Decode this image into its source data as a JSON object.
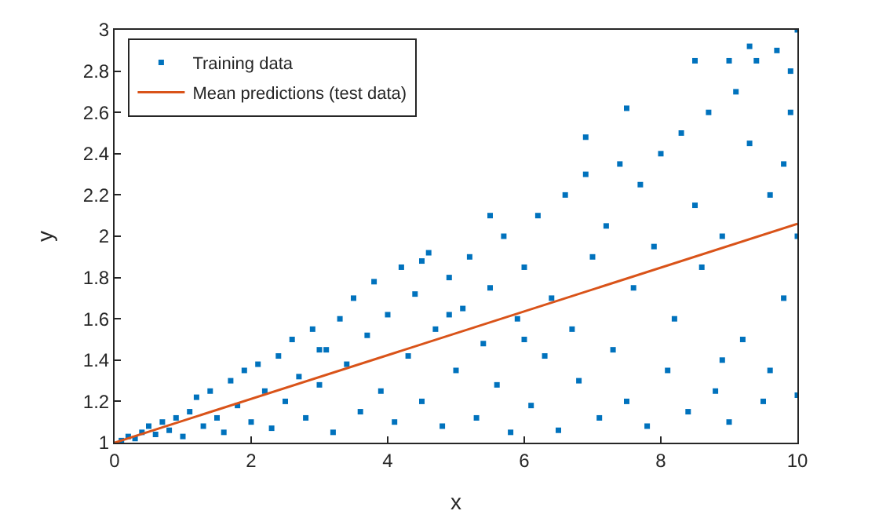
{
  "chart_data": {
    "type": "scatter",
    "xlabel": "x",
    "ylabel": "y",
    "xlim": [
      0,
      10
    ],
    "xticks": [
      0,
      2,
      4,
      6,
      8,
      10
    ],
    "ylim": [
      1,
      3
    ],
    "yticks": [
      1,
      1.2,
      1.4,
      1.6,
      1.8,
      2,
      2.2,
      2.4,
      2.6,
      2.8,
      3
    ],
    "grid": false,
    "legend": "top left",
    "series": [
      {
        "name": "Training data",
        "color": "#0072bd",
        "marker": "square",
        "x": [
          0.1,
          0.2,
          0.3,
          0.4,
          0.5,
          0.6,
          0.7,
          0.8,
          0.9,
          1.0,
          1.1,
          1.2,
          1.3,
          1.4,
          1.5,
          1.6,
          1.7,
          1.8,
          1.9,
          2.0,
          2.1,
          2.2,
          2.3,
          2.4,
          2.5,
          2.6,
          2.7,
          2.8,
          2.9,
          3.0,
          3.1,
          3.2,
          3.3,
          3.4,
          3.5,
          3.6,
          3.7,
          3.8,
          3.9,
          4.0,
          4.1,
          4.2,
          4.3,
          4.4,
          4.5,
          4.6,
          4.7,
          4.8,
          4.9,
          5.0,
          5.1,
          5.2,
          5.3,
          5.4,
          5.5,
          5.6,
          5.7,
          5.8,
          5.9,
          6.0,
          6.1,
          6.2,
          6.3,
          6.4,
          6.5,
          6.6,
          6.7,
          6.8,
          6.9,
          7.0,
          7.1,
          7.2,
          7.3,
          7.4,
          7.5,
          7.6,
          7.7,
          7.8,
          7.9,
          8.0,
          8.1,
          8.2,
          8.3,
          8.4,
          8.5,
          8.6,
          8.7,
          8.8,
          8.9,
          9.0,
          9.1,
          9.2,
          9.3,
          9.4,
          9.5,
          9.6,
          9.7,
          9.8,
          9.9,
          10.0,
          10.0,
          9.9,
          9.6,
          9.0,
          9.3,
          8.5,
          9.8,
          10.0,
          8.9,
          7.5,
          6.9,
          6.0,
          5.5,
          4.5,
          4.9,
          3.0
        ],
        "values": [
          1.01,
          1.03,
          1.02,
          1.05,
          1.08,
          1.04,
          1.1,
          1.06,
          1.12,
          1.03,
          1.15,
          1.22,
          1.08,
          1.25,
          1.12,
          1.05,
          1.3,
          1.18,
          1.35,
          1.1,
          1.38,
          1.25,
          1.07,
          1.42,
          1.2,
          1.5,
          1.32,
          1.12,
          1.55,
          1.28,
          1.45,
          1.05,
          1.6,
          1.38,
          1.7,
          1.15,
          1.52,
          1.78,
          1.25,
          1.62,
          1.1,
          1.85,
          1.42,
          1.72,
          1.2,
          1.92,
          1.55,
          1.08,
          1.8,
          1.35,
          1.65,
          1.9,
          1.12,
          1.48,
          1.75,
          1.28,
          2.0,
          1.05,
          1.6,
          1.85,
          1.18,
          2.1,
          1.42,
          1.7,
          1.06,
          2.2,
          1.55,
          1.3,
          2.3,
          1.9,
          1.12,
          2.05,
          1.45,
          2.35,
          1.2,
          1.75,
          2.25,
          1.08,
          1.95,
          2.4,
          1.35,
          1.6,
          2.5,
          1.15,
          2.15,
          1.85,
          2.6,
          1.25,
          2.0,
          1.1,
          2.7,
          1.5,
          2.45,
          2.85,
          1.2,
          2.2,
          2.9,
          1.7,
          2.6,
          3.0,
          1.23,
          2.8,
          1.35,
          2.85,
          2.92,
          2.85,
          2.35,
          2.0,
          1.4,
          2.62,
          2.48,
          1.5,
          2.1,
          1.88,
          1.62,
          1.45
        ]
      },
      {
        "name": "Mean predictions (test data)",
        "color": "#d95319",
        "type": "line",
        "line_style": "solid",
        "x": [
          0,
          10
        ],
        "values": [
          1,
          2.06
        ]
      }
    ]
  }
}
